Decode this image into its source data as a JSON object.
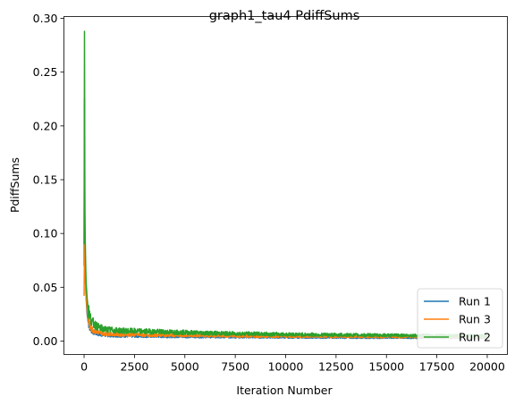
{
  "chart_data": {
    "type": "line",
    "title": "graph1_tau4 PdiffSums",
    "xlabel": "Iteration Number",
    "ylabel": "PdiffSums",
    "xlim": [
      -1000,
      21000
    ],
    "ylim": [
      -0.0125,
      0.3017
    ],
    "xticks": [
      0,
      2500,
      5000,
      7500,
      10000,
      12500,
      15000,
      17500,
      20000
    ],
    "yticks": [
      0.0,
      0.05,
      0.1,
      0.15,
      0.2,
      0.25,
      0.3
    ],
    "ytick_labels": [
      "0.00",
      "0.05",
      "0.10",
      "0.15",
      "0.20",
      "0.25",
      "0.30"
    ],
    "grid": false,
    "legend_position": "lower-right",
    "colors": {
      "Run 1": "#1f77b4",
      "Run 3": "#ff7f0e",
      "Run 2": "#2ca02c"
    },
    "series": [
      {
        "name": "Run 1",
        "x": [
          0,
          20,
          40,
          60,
          80,
          100,
          150,
          200,
          300,
          400,
          500,
          700,
          1000,
          1500,
          2000,
          3000,
          4000,
          5000,
          6000,
          7000,
          8000,
          10000,
          12000,
          14000,
          16000,
          18000,
          20000
        ],
        "values": [
          0.07,
          0.225,
          0.09,
          0.06,
          0.05,
          0.04,
          0.025,
          0.018,
          0.012,
          0.009,
          0.008,
          0.0065,
          0.0055,
          0.005,
          0.0048,
          0.0045,
          0.0043,
          0.0042,
          0.004,
          0.0039,
          0.0038,
          0.0036,
          0.0034,
          0.0033,
          0.0032,
          0.0031,
          0.003
        ]
      },
      {
        "name": "Run 3",
        "x": [
          0,
          20,
          40,
          60,
          80,
          100,
          150,
          200,
          300,
          400,
          500,
          700,
          1000,
          1500,
          2000,
          3000,
          4000,
          5000,
          6000,
          7000,
          8000,
          10000,
          12000,
          14000,
          16000,
          18000,
          20000
        ],
        "values": [
          0.042,
          0.09,
          0.08,
          0.06,
          0.05,
          0.04,
          0.03,
          0.02,
          0.014,
          0.011,
          0.0095,
          0.008,
          0.007,
          0.0065,
          0.006,
          0.0058,
          0.0055,
          0.0052,
          0.005,
          0.0048,
          0.0046,
          0.0044,
          0.0042,
          0.0041,
          0.004,
          0.0039,
          0.0038
        ]
      },
      {
        "name": "Run 2",
        "x": [
          0,
          20,
          40,
          60,
          80,
          100,
          150,
          200,
          300,
          400,
          500,
          700,
          1000,
          1500,
          2000,
          3000,
          4000,
          5000,
          6000,
          7000,
          8000,
          10000,
          12000,
          14000,
          16000,
          18000,
          20000
        ],
        "values": [
          0.09,
          0.288,
          0.12,
          0.09,
          0.07,
          0.055,
          0.04,
          0.03,
          0.022,
          0.018,
          0.016,
          0.013,
          0.011,
          0.01,
          0.0095,
          0.009,
          0.0085,
          0.008,
          0.0075,
          0.007,
          0.0068,
          0.0062,
          0.0058,
          0.0055,
          0.0052,
          0.005,
          0.0048
        ]
      }
    ]
  }
}
